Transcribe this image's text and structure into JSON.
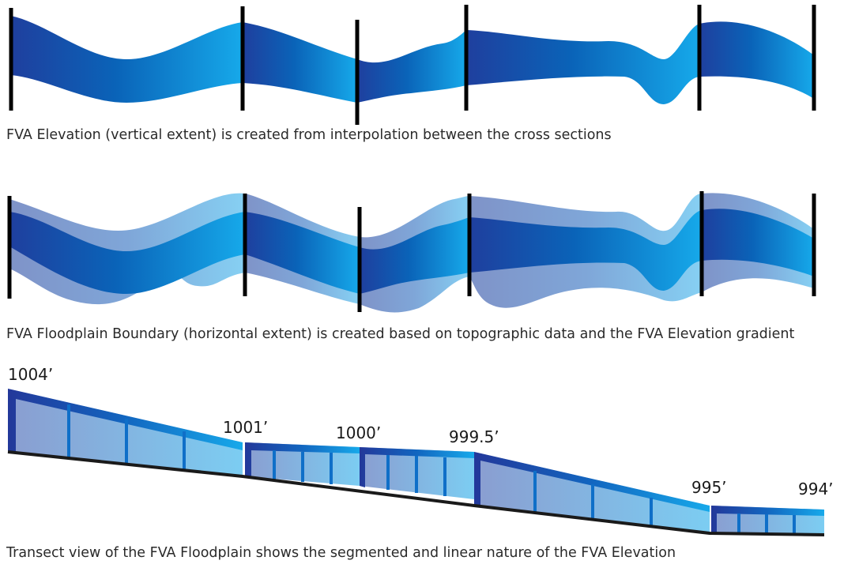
{
  "captions": {
    "elevation": "FVA Elevation (vertical extent) is created from interpolation between the cross sections",
    "floodplain": "FVA Floodplain Boundary (horizontal extent) is created based on topographic data and the FVA Elevation gradient",
    "transect": "Transect view of the FVA Floodplain shows the segmented and linear nature of the FVA Elevation"
  },
  "elevation_labels": [
    "1004’",
    "1001’",
    "1000’",
    "999.5’",
    "995’",
    "994’"
  ],
  "colors": {
    "dark_blue": "#1f3f9e",
    "mid_blue": "#0a63b8",
    "bright_blue": "#16a9ea",
    "light_blue": "#7cc9ee",
    "section_line": "#000000"
  }
}
